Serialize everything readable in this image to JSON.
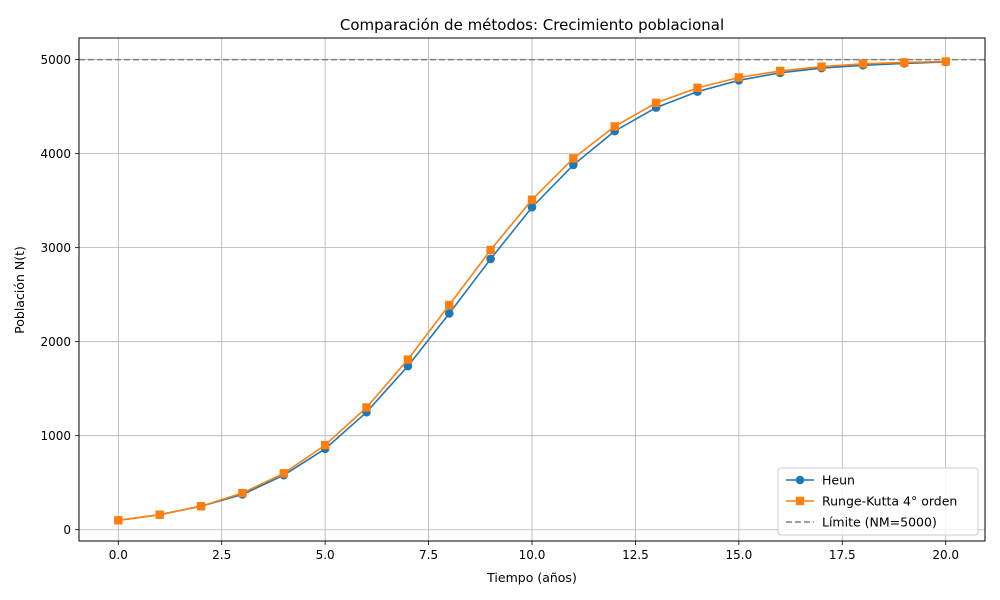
{
  "chart_data": {
    "type": "line",
    "title": "Comparación de métodos: Crecimiento poblacional",
    "xlabel": "Tiempo (años)",
    "ylabel": "Población N(t)",
    "xlim": [
      -0.95,
      20.95
    ],
    "ylim": [
      -120,
      5230
    ],
    "xticks": [
      0.0,
      2.5,
      5.0,
      7.5,
      10.0,
      12.5,
      15.0,
      17.5,
      20.0
    ],
    "xtick_labels": [
      "0.0",
      "2.5",
      "5.0",
      "7.5",
      "10.0",
      "12.5",
      "15.0",
      "17.5",
      "20.0"
    ],
    "yticks": [
      0,
      1000,
      2000,
      3000,
      4000,
      5000
    ],
    "ytick_labels": [
      "0",
      "1000",
      "2000",
      "3000",
      "4000",
      "5000"
    ],
    "grid": true,
    "legend_position": "bottom-right",
    "x": [
      0,
      1,
      2,
      3,
      4,
      5,
      6,
      7,
      8,
      9,
      10,
      11,
      12,
      13,
      14,
      15,
      16,
      17,
      18,
      19,
      20
    ],
    "series": [
      {
        "name": "Heun",
        "color": "#1f77b4",
        "marker": "circle",
        "values": [
          100,
          160,
          250,
          375,
          580,
          860,
          1250,
          1740,
          2300,
          2880,
          3430,
          3880,
          4240,
          4490,
          4660,
          4780,
          4860,
          4910,
          4940,
          4960,
          4975
        ]
      },
      {
        "name": "Runge-Kutta 4° orden",
        "color": "#ff7f0e",
        "marker": "square",
        "values": [
          100,
          160,
          250,
          390,
          600,
          900,
          1300,
          1810,
          2390,
          2975,
          3510,
          3950,
          4290,
          4540,
          4700,
          4810,
          4880,
          4925,
          4955,
          4970,
          4980
        ]
      }
    ],
    "reference_line": {
      "name": "Límite (NM=5000)",
      "y": 5000,
      "color": "#808080",
      "style": "dashed"
    }
  }
}
